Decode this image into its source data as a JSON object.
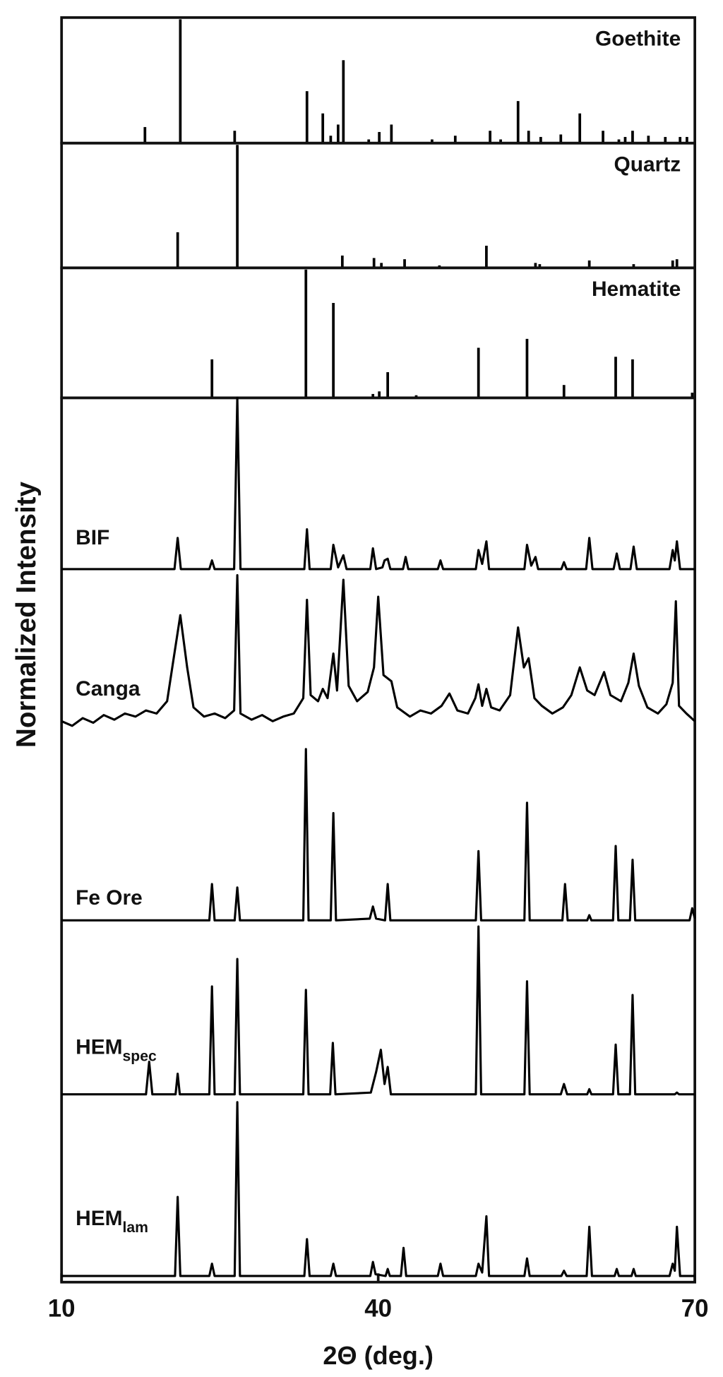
{
  "chart_data": {
    "type": "line",
    "color": "#000000",
    "xlabel": "2Θ (deg.)",
    "ylabel": "Normalized Intensity",
    "xlim": [
      10,
      70
    ],
    "xticks": [
      10,
      40,
      70
    ],
    "ylim": [
      0,
      100
    ],
    "references": [
      {
        "name": "Goethite",
        "positions": [
          17.9,
          21.25,
          26.4,
          33.25,
          34.75,
          35.5,
          36.2,
          36.7,
          39.1,
          40.1,
          41.25,
          45.1,
          47.3,
          50.6,
          51.6,
          53.25,
          54.25,
          55.4,
          57.3,
          59.1,
          61.3,
          62.8,
          63.4,
          64.1,
          65.6,
          67.2,
          68.6,
          69.25
        ],
        "values": [
          13,
          100,
          10,
          42,
          24,
          6,
          15,
          67,
          3,
          9,
          15,
          3,
          6,
          10,
          3,
          34,
          10,
          5,
          7,
          24,
          10,
          3,
          5,
          10,
          6,
          5,
          5,
          5
        ]
      },
      {
        "name": "Quartz",
        "positions": [
          21.0,
          26.65,
          36.6,
          39.6,
          40.3,
          42.5,
          45.8,
          50.25,
          54.9,
          55.3,
          60.0,
          64.2,
          67.9,
          68.3
        ],
        "values": [
          29,
          100,
          10,
          8,
          4,
          7,
          2,
          18,
          4,
          3,
          6,
          3,
          6,
          7
        ]
      },
      {
        "name": "Hematite",
        "positions": [
          24.25,
          33.15,
          35.75,
          39.5,
          40.1,
          40.9,
          43.6,
          49.5,
          54.1,
          57.6,
          62.5,
          64.1,
          69.75
        ],
        "values": [
          30,
          100,
          74,
          3,
          5,
          20,
          2,
          39,
          46,
          10,
          32,
          30,
          4
        ]
      }
    ],
    "series": [
      {
        "name": "BIF",
        "x": [
          10,
          20.7,
          21.0,
          21.3,
          24.0,
          24.25,
          24.5,
          26.35,
          26.65,
          26.95,
          33.0,
          33.25,
          33.5,
          35.5,
          35.75,
          36.2,
          36.7,
          37.0,
          39.25,
          39.5,
          39.8,
          40.4,
          40.6,
          40.9,
          41.15,
          42.35,
          42.6,
          42.85,
          45.65,
          45.9,
          46.15,
          49.25,
          49.5,
          49.85,
          50.25,
          50.5,
          53.85,
          54.1,
          54.5,
          54.9,
          55.15,
          57.35,
          57.6,
          57.85,
          59.7,
          60.0,
          60.3,
          62.3,
          62.6,
          62.9,
          63.9,
          64.2,
          64.5,
          67.6,
          67.9,
          68.1,
          68.3,
          68.6,
          70
        ],
        "values": [
          1,
          1,
          19,
          1,
          1,
          6,
          1,
          1,
          100,
          1,
          1,
          24,
          1,
          1,
          15,
          2,
          9,
          1,
          1,
          13,
          1,
          2,
          6,
          7,
          1,
          1,
          8,
          1,
          1,
          6,
          1,
          1,
          12,
          4,
          17,
          1,
          1,
          15,
          3,
          8,
          1,
          1,
          5,
          1,
          1,
          19,
          1,
          1,
          10,
          1,
          1,
          14,
          1,
          1,
          12,
          6,
          17,
          1,
          1
        ]
      },
      {
        "name": "Canga",
        "x": [
          10,
          11,
          12,
          13,
          14,
          15,
          16,
          17,
          18,
          19,
          20,
          20.6,
          21.25,
          21.9,
          22.5,
          23.5,
          24.5,
          25.5,
          26.35,
          26.65,
          26.95,
          28,
          29,
          30,
          31,
          32,
          32.9,
          33.25,
          33.6,
          34.3,
          34.75,
          35.2,
          35.75,
          36.1,
          36.7,
          37.2,
          38,
          39,
          39.6,
          40.0,
          40.5,
          41.25,
          41.8,
          43,
          44,
          45,
          46,
          46.75,
          47.5,
          48.5,
          49.2,
          49.5,
          49.85,
          50.25,
          50.7,
          51.5,
          52.5,
          53.25,
          53.8,
          54.25,
          54.8,
          55.5,
          56.5,
          57.5,
          58.3,
          59.1,
          59.8,
          60.5,
          61.4,
          62,
          63,
          63.7,
          64.2,
          64.7,
          65.5,
          66.5,
          67.3,
          67.9,
          68.2,
          68.5,
          69.2,
          70
        ],
        "values": [
          5,
          2,
          7,
          4,
          9,
          6,
          10,
          8,
          12,
          10,
          18,
          45,
          74,
          40,
          14,
          8,
          10,
          7,
          12,
          100,
          10,
          6,
          9,
          5,
          8,
          10,
          20,
          84,
          22,
          18,
          26,
          20,
          49,
          25,
          97,
          28,
          18,
          24,
          40,
          86,
          35,
          31,
          14,
          8,
          12,
          10,
          15,
          23,
          12,
          10,
          20,
          29,
          15,
          26,
          14,
          12,
          22,
          66,
          40,
          46,
          20,
          15,
          10,
          14,
          22,
          40,
          25,
          22,
          37,
          22,
          18,
          30,
          49,
          28,
          14,
          10,
          16,
          30,
          83,
          15,
          10,
          5
        ]
      },
      {
        "name": "Fe Ore",
        "x": [
          10,
          24.0,
          24.25,
          24.5,
          26.4,
          26.65,
          26.9,
          32.9,
          33.15,
          33.4,
          35.5,
          35.75,
          36.0,
          39.2,
          39.5,
          39.8,
          40.65,
          40.9,
          41.15,
          49.25,
          49.5,
          49.75,
          53.85,
          54.1,
          54.35,
          57.45,
          57.7,
          57.95,
          59.8,
          60.0,
          60.2,
          62.25,
          62.5,
          62.75,
          63.85,
          64.1,
          64.35,
          69.5,
          69.75,
          70
        ],
        "values": [
          1,
          1,
          22,
          1,
          1,
          20,
          1,
          1,
          100,
          1,
          1,
          63,
          1,
          2,
          9,
          2,
          1,
          22,
          1,
          1,
          41,
          1,
          1,
          69,
          1,
          1,
          22,
          1,
          1,
          4,
          1,
          1,
          44,
          1,
          1,
          36,
          1,
          1,
          8,
          2
        ]
      },
      {
        "name": "HEM",
        "subscript": "spec",
        "x": [
          10,
          18.0,
          18.3,
          18.6,
          20.8,
          21.0,
          21.2,
          24.0,
          24.25,
          24.5,
          26.4,
          26.65,
          26.9,
          32.9,
          33.15,
          33.4,
          35.45,
          35.7,
          35.95,
          39.3,
          39.8,
          40.25,
          40.6,
          40.9,
          41.2,
          49.25,
          49.5,
          49.75,
          53.85,
          54.1,
          54.35,
          57.3,
          57.6,
          57.9,
          59.8,
          60.0,
          60.2,
          62.25,
          62.5,
          62.75,
          63.85,
          64.1,
          64.35,
          68.1,
          68.3,
          68.5,
          70
        ],
        "values": [
          2,
          2,
          21,
          2,
          2,
          14,
          2,
          2,
          65,
          2,
          2,
          81,
          2,
          2,
          63,
          2,
          2,
          32,
          2,
          3,
          15,
          28,
          8,
          18,
          2,
          2,
          100,
          2,
          2,
          68,
          2,
          2,
          8,
          2,
          2,
          5,
          2,
          2,
          31,
          2,
          2,
          60,
          2,
          2,
          3,
          2,
          2
        ]
      },
      {
        "name": "HEM",
        "subscript": "lam",
        "x": [
          10,
          20.75,
          21.0,
          21.25,
          24.0,
          24.25,
          24.5,
          26.4,
          26.65,
          26.9,
          33.0,
          33.25,
          33.5,
          35.5,
          35.75,
          36.0,
          39.25,
          39.5,
          39.75,
          40.7,
          40.9,
          41.1,
          42.15,
          42.4,
          42.65,
          45.65,
          45.9,
          46.15,
          49.25,
          49.5,
          49.85,
          50.25,
          50.5,
          53.85,
          54.1,
          54.35,
          57.35,
          57.6,
          57.85,
          59.75,
          60.0,
          60.25,
          62.4,
          62.6,
          62.8,
          64.0,
          64.2,
          64.4,
          67.6,
          67.9,
          68.1,
          68.3,
          68.6,
          70
        ],
        "values": [
          1,
          1,
          46,
          1,
          1,
          8,
          1,
          1,
          100,
          1,
          1,
          22,
          1,
          1,
          8,
          1,
          1,
          9,
          2,
          1,
          5,
          1,
          1,
          17,
          1,
          1,
          8,
          1,
          1,
          8,
          3,
          35,
          1,
          1,
          11,
          1,
          1,
          4,
          1,
          1,
          29,
          1,
          1,
          5,
          1,
          1,
          5,
          1,
          1,
          8,
          4,
          29,
          1,
          1
        ]
      }
    ]
  }
}
